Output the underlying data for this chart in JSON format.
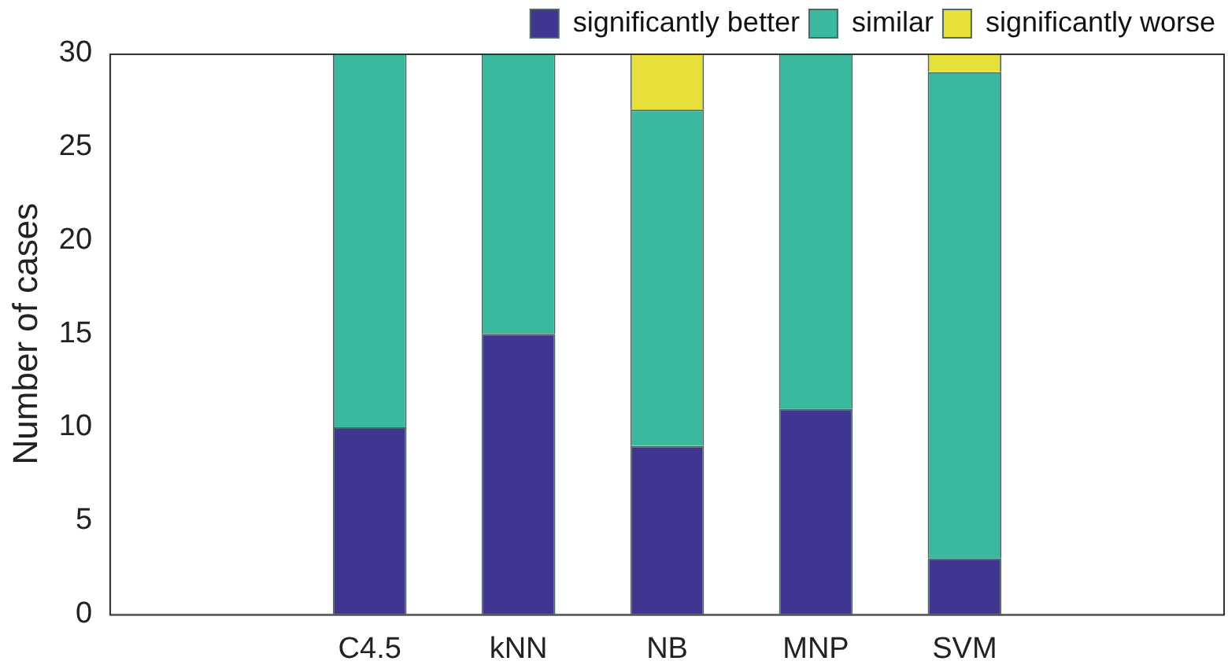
{
  "chart_data": {
    "type": "bar",
    "stacked": true,
    "ylabel": "Number of cases",
    "categories": [
      "C4.5",
      "kNN",
      "NB",
      "MNP",
      "SVM"
    ],
    "series": [
      {
        "name": "significantly better",
        "color": "#403590",
        "values": [
          10,
          15,
          9,
          11,
          3
        ]
      },
      {
        "name": "similar",
        "color": "#3bb99e",
        "values": [
          20,
          15,
          18,
          19,
          26
        ]
      },
      {
        "name": "significantly worse",
        "color": "#e8e03a",
        "values": [
          0,
          0,
          3,
          0,
          1
        ]
      }
    ],
    "ylim": [
      0,
      30
    ],
    "yticks": [
      0,
      5,
      10,
      15,
      20,
      25,
      30
    ],
    "grid": false,
    "legend": "top right"
  }
}
